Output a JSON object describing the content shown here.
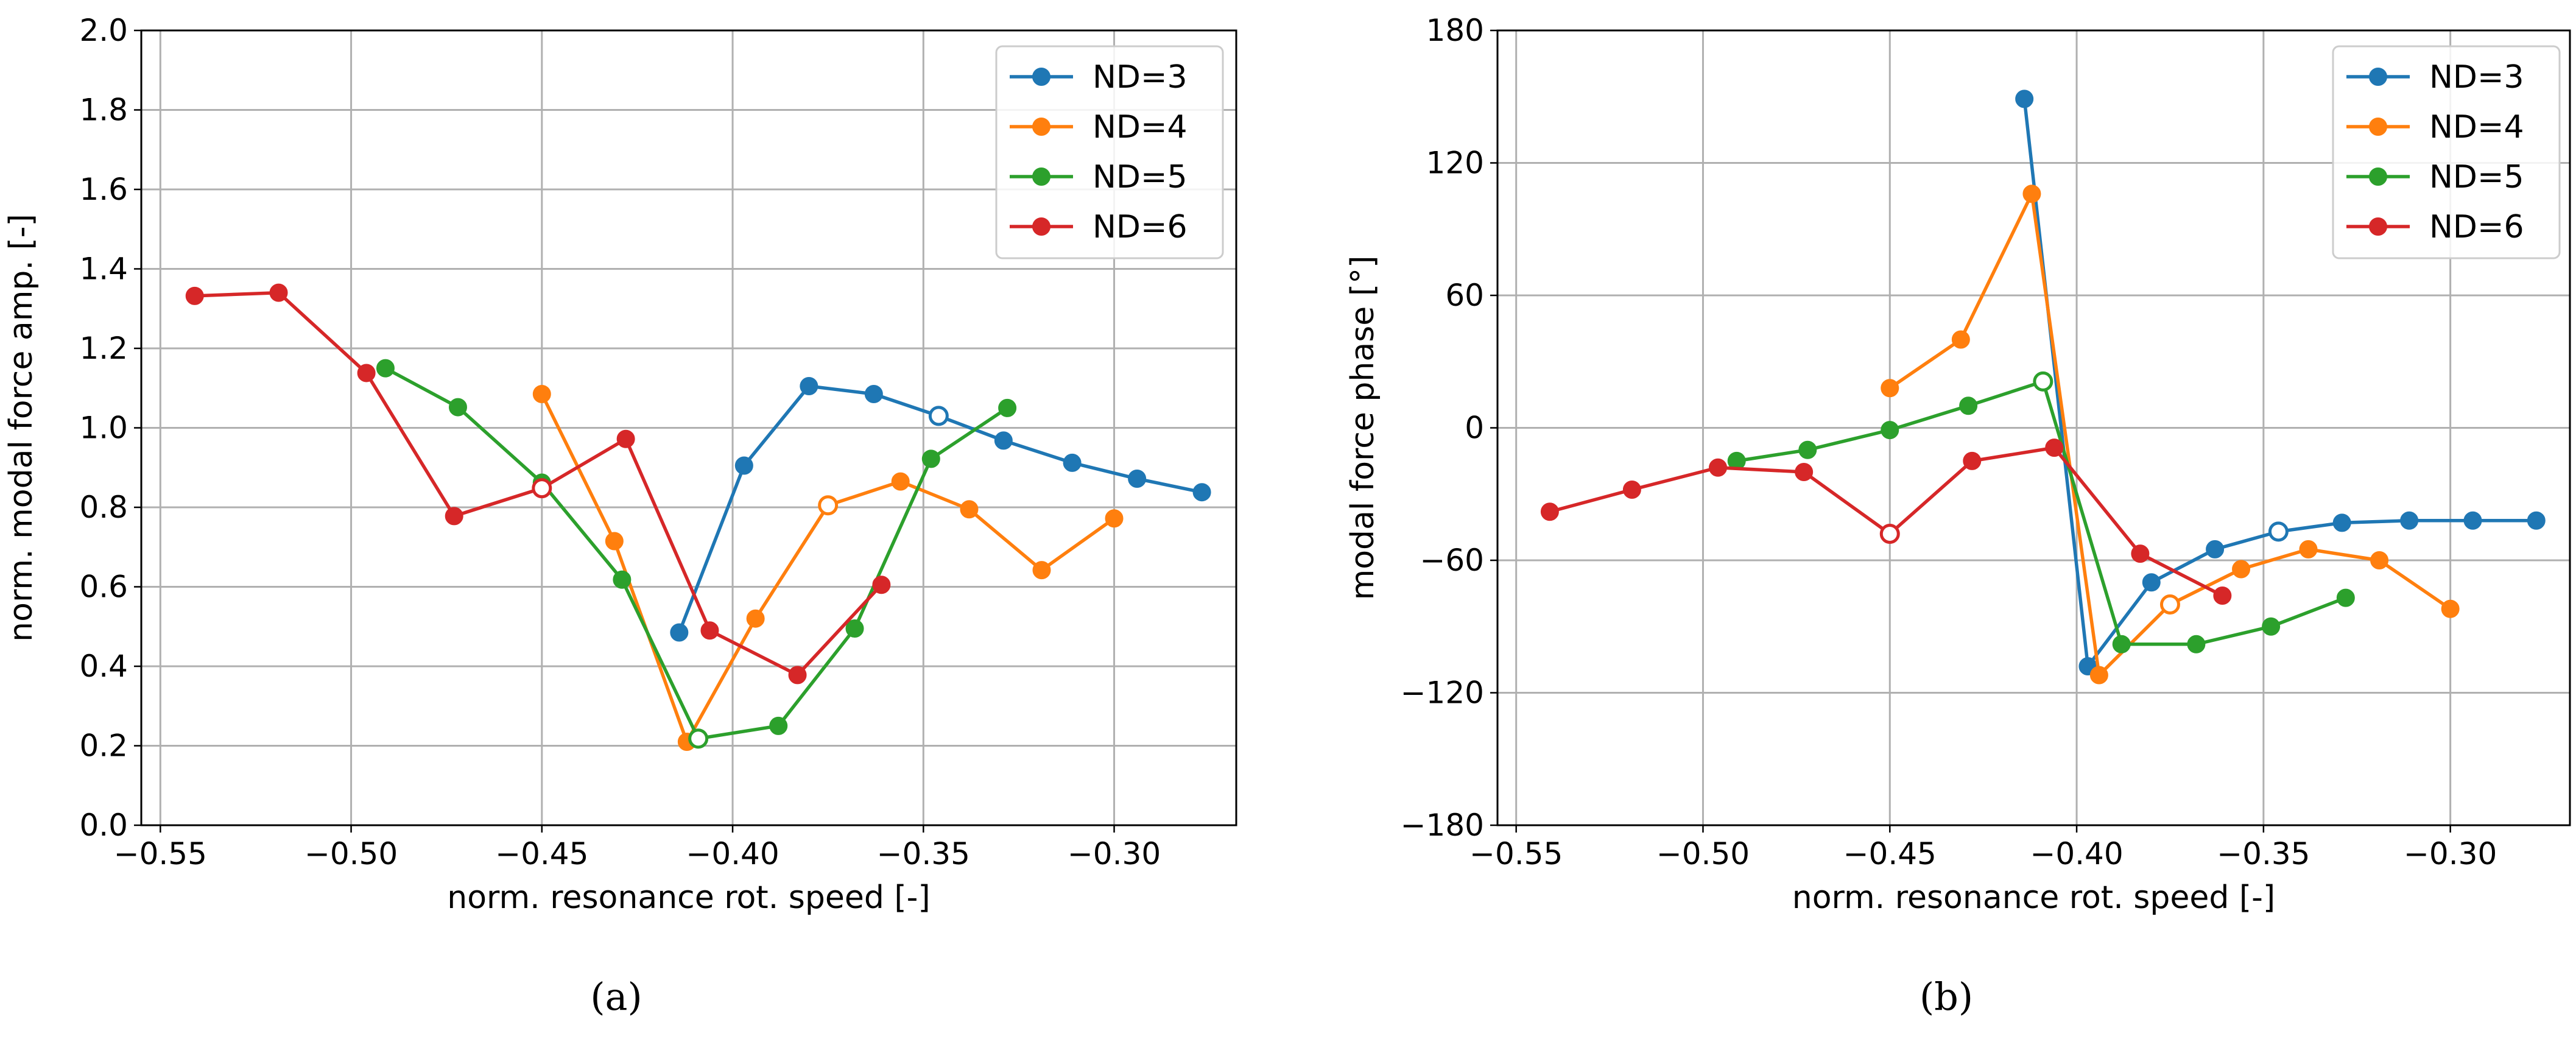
{
  "chart_data": [
    {
      "panel": "(a)",
      "type": "line",
      "xlabel": "norm. resonance rot. speed [-]",
      "ylabel": "norm. modal force amp. [-]",
      "xlim": [
        -0.555,
        -0.268
      ],
      "ylim": [
        0.0,
        2.0
      ],
      "xticks": [
        -0.55,
        -0.5,
        -0.45,
        -0.4,
        -0.35,
        -0.3
      ],
      "xtick_labels": [
        "−0.55",
        "−0.50",
        "−0.45",
        "−0.40",
        "−0.35",
        "−0.30"
      ],
      "yticks": [
        0.0,
        0.2,
        0.4,
        0.6,
        0.8,
        1.0,
        1.2,
        1.4,
        1.6,
        1.8,
        2.0
      ],
      "ytick_labels": [
        "0.0",
        "0.2",
        "0.4",
        "0.6",
        "0.8",
        "1.0",
        "1.2",
        "1.4",
        "1.6",
        "1.8",
        "2.0"
      ],
      "grid": true,
      "legend_position": "top-right",
      "series": [
        {
          "name": "ND=3",
          "color": "#1f77b4",
          "x": [
            -0.414,
            -0.397,
            -0.38,
            -0.363,
            -0.346,
            -0.329,
            -0.311,
            -0.294,
            -0.277
          ],
          "y": [
            0.485,
            0.905,
            1.105,
            1.085,
            1.03,
            0.968,
            0.912,
            0.872,
            0.838
          ],
          "hollow_index": 4
        },
        {
          "name": "ND=4",
          "color": "#ff7f0e",
          "x": [
            -0.45,
            -0.431,
            -0.412,
            -0.394,
            -0.375,
            -0.356,
            -0.338,
            -0.319,
            -0.3
          ],
          "y": [
            1.085,
            0.715,
            0.21,
            0.52,
            0.805,
            0.865,
            0.795,
            0.642,
            0.772
          ],
          "hollow_index": 4
        },
        {
          "name": "ND=5",
          "color": "#2ca02c",
          "x": [
            -0.491,
            -0.472,
            -0.45,
            -0.429,
            -0.409,
            -0.388,
            -0.368,
            -0.348,
            -0.328
          ],
          "y": [
            1.15,
            1.052,
            0.862,
            0.618,
            0.218,
            0.25,
            0.495,
            0.922,
            1.05
          ],
          "hollow_index": 4
        },
        {
          "name": "ND=6",
          "color": "#d62728",
          "x": [
            -0.541,
            -0.519,
            -0.496,
            -0.473,
            -0.45,
            -0.428,
            -0.406,
            -0.383,
            -0.361
          ],
          "y": [
            1.332,
            1.34,
            1.138,
            0.778,
            0.848,
            0.972,
            0.49,
            0.378,
            0.605
          ],
          "hollow_index": 4
        }
      ]
    },
    {
      "panel": "(b)",
      "type": "line",
      "xlabel": "norm. resonance rot. speed [-]",
      "ylabel": "modal force phase [°]",
      "xlim": [
        -0.555,
        -0.268
      ],
      "ylim": [
        -180,
        180
      ],
      "xticks": [
        -0.55,
        -0.5,
        -0.45,
        -0.4,
        -0.35,
        -0.3
      ],
      "xtick_labels": [
        "−0.55",
        "−0.50",
        "−0.45",
        "−0.40",
        "−0.35",
        "−0.30"
      ],
      "yticks": [
        -180,
        -120,
        -60,
        0,
        60,
        120,
        180
      ],
      "ytick_labels": [
        "−180",
        "−120",
        "−60",
        "0",
        "60",
        "120",
        "180"
      ],
      "grid": true,
      "legend_position": "top-right",
      "series": [
        {
          "name": "ND=3",
          "color": "#1f77b4",
          "x": [
            -0.414,
            -0.397,
            -0.38,
            -0.363,
            -0.346,
            -0.329,
            -0.311,
            -0.294,
            -0.277
          ],
          "y": [
            149,
            -108,
            -70,
            -55,
            -47,
            -43,
            -42,
            -42,
            -42
          ],
          "hollow_index": 4
        },
        {
          "name": "ND=4",
          "color": "#ff7f0e",
          "x": [
            -0.45,
            -0.431,
            -0.412,
            -0.394,
            -0.375,
            -0.356,
            -0.338,
            -0.319,
            -0.3
          ],
          "y": [
            18,
            40,
            106,
            -112,
            -80,
            -64,
            -55,
            -60,
            -82
          ],
          "hollow_index": 4
        },
        {
          "name": "ND=5",
          "color": "#2ca02c",
          "x": [
            -0.491,
            -0.472,
            -0.45,
            -0.429,
            -0.409,
            -0.388,
            -0.368,
            -0.348,
            -0.328
          ],
          "y": [
            -15,
            -10,
            -1,
            10,
            21,
            -98,
            -98,
            -90,
            -77
          ],
          "hollow_index": 4
        },
        {
          "name": "ND=6",
          "color": "#d62728",
          "x": [
            -0.541,
            -0.519,
            -0.496,
            -0.473,
            -0.45,
            -0.428,
            -0.406,
            -0.383,
            -0.361
          ],
          "y": [
            -38,
            -28,
            -18,
            -20,
            -48,
            -15,
            -9,
            -57,
            -76
          ],
          "hollow_index": 4
        }
      ]
    }
  ],
  "captions": {
    "a": "(a)",
    "b": "(b)"
  }
}
